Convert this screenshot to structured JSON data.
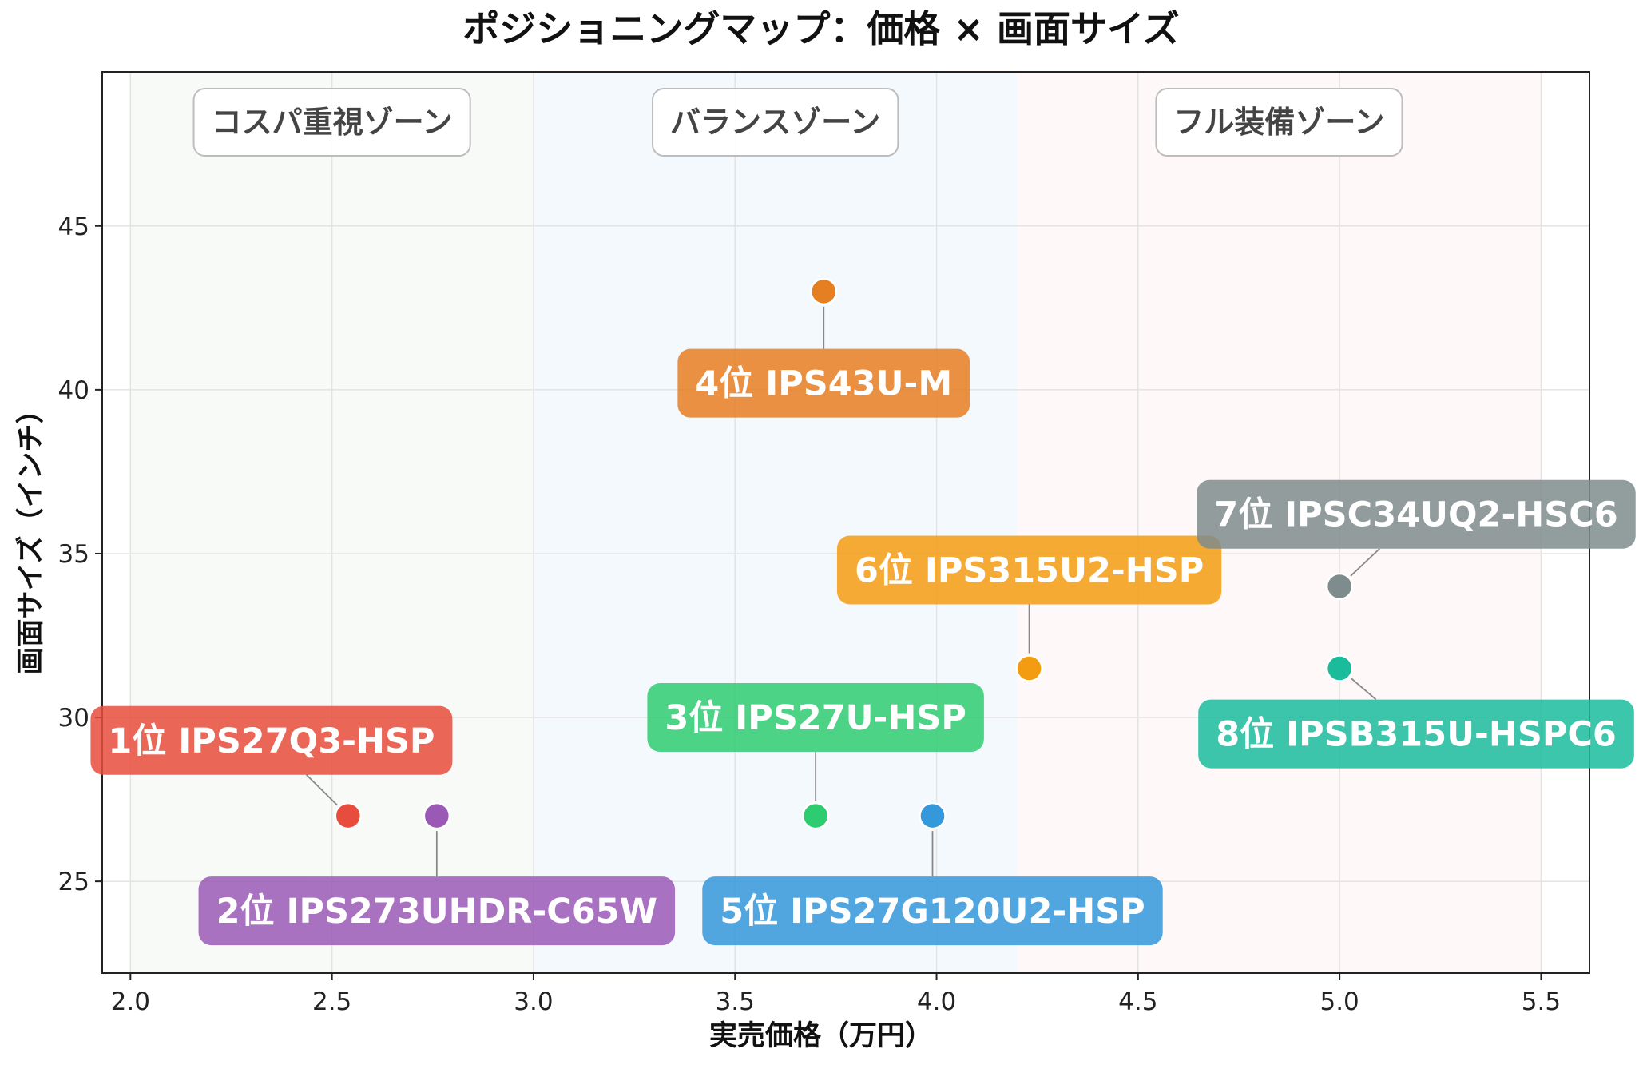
{
  "chart_data": {
    "type": "scatter",
    "title": "ポジショニングマップ：価格 × 画面サイズ",
    "xlabel": "実売価格（万円）",
    "ylabel": "画面サイズ（インチ）",
    "xlim": [
      1.93,
      5.62
    ],
    "ylim": [
      22.2,
      49.7
    ],
    "xticks": [
      2.0,
      2.5,
      3.0,
      3.5,
      4.0,
      4.5,
      5.0,
      5.5
    ],
    "xtick_labels": [
      "2.0",
      "2.5",
      "3.0",
      "3.5",
      "4.0",
      "4.5",
      "5.0",
      "5.5"
    ],
    "yticks": [
      25,
      30,
      35,
      40,
      45
    ],
    "ytick_labels": [
      "25",
      "30",
      "35",
      "40",
      "45"
    ],
    "grid": true,
    "zones": [
      {
        "label": "コスパ重視ゾーン",
        "x_range": [
          2.0,
          3.0
        ],
        "color": "#2e7d32",
        "opacity": 0.04
      },
      {
        "label": "バランスゾーン",
        "x_range": [
          3.0,
          4.2
        ],
        "color": "#1e88e5",
        "opacity": 0.05
      },
      {
        "label": "フル装備ゾーン",
        "x_range": [
          4.2,
          5.5
        ],
        "color": "#e53935",
        "opacity": 0.035
      }
    ],
    "points": [
      {
        "label": "1位 IPS27Q3-HSP",
        "x": 2.54,
        "y": 27.0,
        "color": "#e74c3c",
        "label_at": [
          2.35,
          29.3
        ]
      },
      {
        "label": "2位 IPS273UHDR-C65W",
        "x": 2.76,
        "y": 27.0,
        "color": "#9b59b6",
        "label_at": [
          2.76,
          24.1
        ]
      },
      {
        "label": "3位 IPS27U-HSP",
        "x": 3.7,
        "y": 27.0,
        "color": "#2ecc71",
        "label_at": [
          3.7,
          30.0
        ]
      },
      {
        "label": "4位 IPS43U-M",
        "x": 3.72,
        "y": 43.0,
        "color": "#e67e22",
        "label_at": [
          3.72,
          40.2
        ]
      },
      {
        "label": "5位 IPS27G120U2-HSP",
        "x": 3.99,
        "y": 27.0,
        "color": "#3498db",
        "label_at": [
          3.99,
          24.1
        ]
      },
      {
        "label": "6位 IPS315U2-HSP",
        "x": 4.23,
        "y": 31.5,
        "color": "#f39c12",
        "label_at": [
          4.23,
          34.5
        ]
      },
      {
        "label": "7位 IPSC34UQ2-HSC6",
        "x": 5.0,
        "y": 34.0,
        "color": "#7f8c8d",
        "label_at": [
          5.19,
          36.2
        ]
      },
      {
        "label": "8位 IPSB315U-HSPC6",
        "x": 5.0,
        "y": 31.5,
        "color": "#1abc9c",
        "label_at": [
          5.19,
          29.5
        ]
      }
    ]
  }
}
